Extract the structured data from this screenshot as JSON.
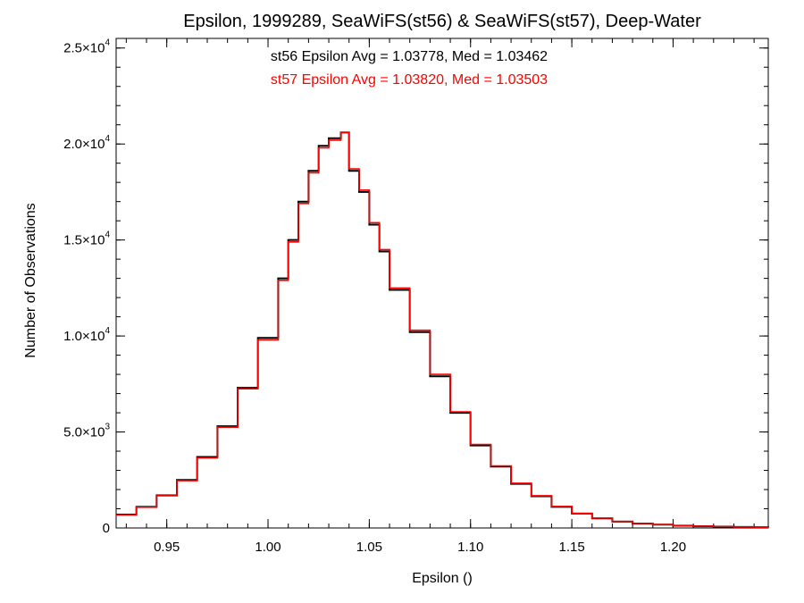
{
  "chart_data": {
    "type": "line",
    "title": "Epsilon, 1999289, SeaWiFS(st56) & SeaWiFS(st57), Deep-Water",
    "xlabel": "Epsilon ()",
    "ylabel": "Number of Observations",
    "xlim": [
      0.925,
      1.247
    ],
    "ylim": [
      0,
      25500
    ],
    "grid": false,
    "x_ticks": [
      {
        "value": 0.95,
        "label": "0.95"
      },
      {
        "value": 1.0,
        "label": "1.00"
      },
      {
        "value": 1.05,
        "label": "1.05"
      },
      {
        "value": 1.1,
        "label": "1.10"
      },
      {
        "value": 1.15,
        "label": "1.15"
      },
      {
        "value": 1.2,
        "label": "1.20"
      }
    ],
    "y_ticks": [
      {
        "value": 0,
        "mant": "0",
        "exp": ""
      },
      {
        "value": 5000,
        "mant": "5.0×10",
        "exp": "3"
      },
      {
        "value": 10000,
        "mant": "1.0×10",
        "exp": "4"
      },
      {
        "value": 15000,
        "mant": "1.5×10",
        "exp": "4"
      },
      {
        "value": 20000,
        "mant": "2.0×10",
        "exp": "4"
      },
      {
        "value": 25000,
        "mant": "2.5×10",
        "exp": "4"
      }
    ],
    "annotations": [
      {
        "text": "st56 Epsilon Avg = 1.03778, Med = 1.03462",
        "color": "#000000"
      },
      {
        "text": "st57 Epsilon Avg = 1.03820, Med = 1.03503",
        "color": "#ff0000"
      }
    ],
    "series": [
      {
        "color": "#000000",
        "x": [
          0.925,
          0.935,
          0.945,
          0.955,
          0.965,
          0.975,
          0.985,
          0.995,
          1.005,
          1.01,
          1.015,
          1.02,
          1.025,
          1.03,
          1.036,
          1.04,
          1.045,
          1.05,
          1.055,
          1.06,
          1.07,
          1.08,
          1.09,
          1.1,
          1.11,
          1.12,
          1.13,
          1.14,
          1.15,
          1.16,
          1.17,
          1.18,
          1.19,
          1.2,
          1.21,
          1.22,
          1.23,
          1.24,
          1.247
        ],
        "y": [
          700,
          1100,
          1700,
          2500,
          3700,
          5300,
          7300,
          9900,
          13000,
          15000,
          17000,
          18600,
          19900,
          20300,
          20600,
          18600,
          17500,
          15800,
          14400,
          12400,
          10200,
          7900,
          6000,
          4300,
          3200,
          2300,
          1650,
          1100,
          750,
          500,
          330,
          230,
          170,
          120,
          90,
          70,
          50,
          40,
          30
        ]
      },
      {
        "color": "#ff0000",
        "x": [
          0.925,
          0.935,
          0.945,
          0.955,
          0.965,
          0.975,
          0.985,
          0.995,
          1.005,
          1.01,
          1.015,
          1.02,
          1.025,
          1.03,
          1.036,
          1.04,
          1.045,
          1.05,
          1.055,
          1.06,
          1.07,
          1.08,
          1.09,
          1.1,
          1.11,
          1.12,
          1.13,
          1.14,
          1.15,
          1.16,
          1.17,
          1.18,
          1.19,
          1.2,
          1.21,
          1.22,
          1.23,
          1.24,
          1.247
        ],
        "y": [
          680,
          1080,
          1680,
          2460,
          3650,
          5250,
          7250,
          9800,
          12900,
          14900,
          16900,
          18500,
          19800,
          20200,
          20600,
          18700,
          17600,
          15900,
          14500,
          12500,
          10300,
          8000,
          6050,
          4350,
          3230,
          2330,
          1680,
          1120,
          760,
          510,
          340,
          240,
          175,
          125,
          95,
          72,
          52,
          42,
          32
        ]
      }
    ]
  }
}
